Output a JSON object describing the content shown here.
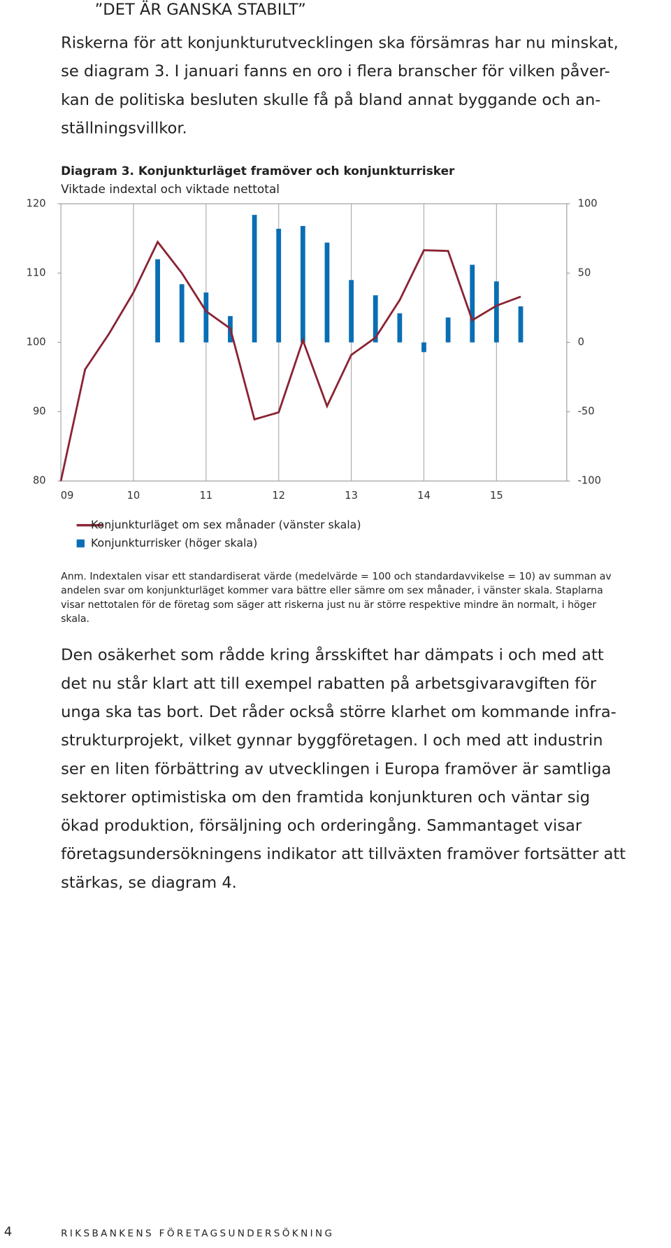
{
  "header": {
    "title": "”DET ÄR GANSKA STABILT”"
  },
  "paragraphs": [
    [
      "Riskerna för att konjunkturutvecklingen ska försämras har nu minskat,",
      "se diagram 3. I januari fanns en oro i flera branscher för vilken påver-",
      "kan de politiska besluten skulle få på bland annat byggande och an-",
      "ställningsvillkor."
    ],
    [
      "Den osäkerhet som rådde kring årsskiftet har dämpats i och med att",
      "det nu står klart att till exempel rabatten på arbetsgivaravgiften för",
      "unga ska tas bort. Det råder också större klarhet om kommande infra-",
      "strukturprojekt, vilket gynnar byggföretagen. I och med att industrin",
      "ser en liten förbättring av utvecklingen i Europa framöver är samtliga",
      "sektorer optimistiska om den framtida konjunkturen och väntar sig",
      "ökad produktion, försäljning och orderingång. Sammantaget visar",
      "företagsundersökningens indikator att tillväxten framöver fortsätter att",
      "stärkas, se diagram 4."
    ]
  ],
  "chart_data": {
    "type": "bar",
    "title": "Diagram 3. Konjunkturläget framöver och konjunkturrisker",
    "subtitle": "Viktade indextal och viktade nettotal",
    "categories": [
      "09",
      null,
      null,
      "10",
      null,
      null,
      "11",
      null,
      null,
      "12",
      null,
      null,
      "13",
      null,
      null,
      "14",
      null,
      null,
      "15",
      null
    ],
    "series": [
      {
        "name": "Konjunkturläget om sex månader (vänster skala)",
        "color": "#8b2332",
        "type": "line",
        "values": [
          80,
          96.1,
          101.3,
          107.2,
          114.5,
          110,
          104.5,
          102,
          88.9,
          89.9,
          100.3,
          90.8,
          98.2,
          100.7,
          106.1,
          113.3,
          113.2,
          103.2,
          105.3,
          106.6
        ]
      },
      {
        "name": "Konjunkturrisker (höger skala)",
        "color": "#0a6eb4",
        "type": "bar",
        "axis": "y2",
        "values": [
          null,
          null,
          null,
          null,
          60,
          42,
          36,
          19,
          92,
          82,
          84,
          72,
          45,
          34,
          21,
          -7,
          18,
          56,
          44,
          26
        ]
      }
    ],
    "ylim": [
      80,
      120
    ],
    "yticks": [
      80,
      90,
      100,
      110,
      120
    ],
    "y2lim": [
      -100,
      100
    ],
    "y2ticks": [
      -100,
      -50,
      0,
      50,
      100
    ],
    "note": [
      "Anm. Indextalen visar ett standardiserat värde (medelvärde = 100 och standardavvikelse = 10) av summan av",
      "andelen svar om konjunkturläget kommer vara bättre eller sämre om sex månader, i vänster skala. Staplarna",
      "visar nettotalen för de företag som säger att riskerna just nu är större respektive mindre än normalt, i höger",
      "skala."
    ]
  },
  "footer": {
    "page": "4",
    "text": "RIKSBANKENS FÖRETAGSUNDERSÖKNING"
  }
}
